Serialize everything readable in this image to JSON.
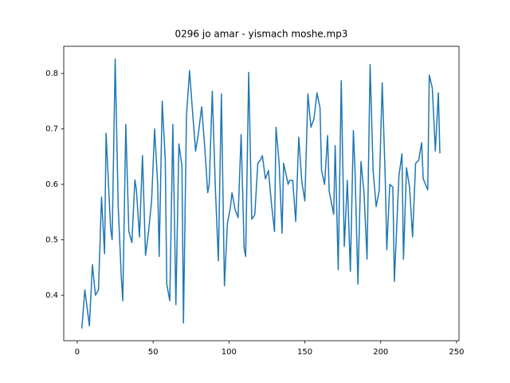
{
  "chart_data": {
    "type": "line",
    "title": "0296 jo amar - yismach moshe.mp3",
    "series": [
      {
        "color": "#1f77b4",
        "x": [
          3,
          5,
          8,
          10,
          12,
          14,
          16,
          18,
          19,
          22,
          23,
          25,
          27,
          29,
          30,
          32,
          34,
          36,
          38,
          39,
          41,
          43,
          45,
          47,
          49,
          51,
          53,
          54,
          56,
          58,
          59,
          61,
          63,
          65,
          67,
          69,
          70,
          72,
          74,
          76,
          78,
          80,
          82,
          84,
          86,
          87,
          89,
          91,
          93,
          95,
          97,
          99,
          101,
          102,
          104,
          106,
          108,
          110,
          111,
          113,
          115,
          117,
          119,
          121,
          122,
          124,
          126,
          128,
          130,
          131,
          133,
          135,
          136,
          139,
          140,
          142,
          144,
          146,
          148,
          150,
          152,
          154,
          156,
          158,
          160,
          161,
          163,
          165,
          166,
          169,
          170,
          172,
          174,
          176,
          178,
          180,
          182,
          183,
          185,
          187,
          189,
          191,
          193,
          195,
          197,
          199,
          201,
          203,
          204,
          206,
          208,
          209,
          212,
          214,
          215,
          217,
          219,
          221,
          223,
          225,
          227,
          228,
          231,
          232,
          234,
          236,
          238,
          239
        ],
        "values": [
          0.34,
          0.41,
          0.345,
          0.455,
          0.4,
          0.41,
          0.577,
          0.475,
          0.692,
          0.52,
          0.5,
          0.826,
          0.56,
          0.435,
          0.39,
          0.708,
          0.515,
          0.495,
          0.608,
          0.59,
          0.505,
          0.652,
          0.472,
          0.515,
          0.57,
          0.7,
          0.6,
          0.47,
          0.75,
          0.645,
          0.42,
          0.39,
          0.708,
          0.383,
          0.673,
          0.633,
          0.35,
          0.725,
          0.805,
          0.73,
          0.66,
          0.695,
          0.74,
          0.668,
          0.585,
          0.6,
          0.768,
          0.595,
          0.462,
          0.763,
          0.417,
          0.53,
          0.56,
          0.585,
          0.555,
          0.54,
          0.69,
          0.485,
          0.47,
          0.802,
          0.537,
          0.545,
          0.638,
          0.645,
          0.652,
          0.61,
          0.625,
          0.565,
          0.515,
          0.703,
          0.64,
          0.512,
          0.638,
          0.6,
          0.607,
          0.607,
          0.533,
          0.685,
          0.605,
          0.57,
          0.763,
          0.703,
          0.718,
          0.765,
          0.738,
          0.625,
          0.6,
          0.688,
          0.588,
          0.546,
          0.67,
          0.446,
          0.787,
          0.488,
          0.607,
          0.443,
          0.697,
          0.632,
          0.42,
          0.641,
          0.585,
          0.465,
          0.816,
          0.625,
          0.56,
          0.588,
          0.783,
          0.61,
          0.482,
          0.6,
          0.595,
          0.425,
          0.615,
          0.655,
          0.465,
          0.63,
          0.595,
          0.505,
          0.638,
          0.643,
          0.675,
          0.61,
          0.59,
          0.797,
          0.774,
          0.66,
          0.765,
          0.656
        ]
      }
    ],
    "xlim": [
      -8.9,
      251.6
    ],
    "xticks": [
      0,
      50,
      100,
      150,
      200,
      250
    ],
    "ylim": [
      0.318,
      0.849
    ],
    "yticks": [
      0.4,
      0.5,
      0.6,
      0.7,
      0.8
    ]
  }
}
